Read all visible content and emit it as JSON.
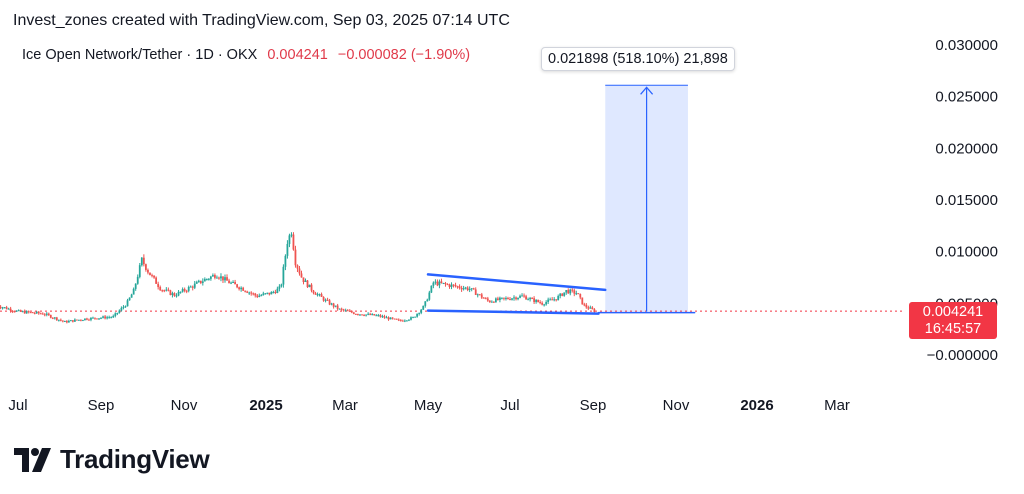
{
  "header": {
    "attribution": "Invest_zones created with TradingView.com, Sep 03, 2025 07:14 UTC"
  },
  "legend": {
    "symbol": "Ice Open Network/Tether · 1D · OKX",
    "price": "0.004241",
    "change": "−0.000082 (−1.90%)",
    "change_color": "#e03a4a"
  },
  "measure": {
    "label": "0.021898 (518.10%) 21,898"
  },
  "price_badge": {
    "price": "0.004241",
    "countdown": "16:45:57",
    "color": "#f23645"
  },
  "logo": {
    "text": "TradingView",
    "icon": "tradingview-logo-icon"
  },
  "chart_data": {
    "type": "candlestick",
    "title": "",
    "symbol": "ICE/USDT",
    "interval": "1D",
    "exchange": "OKX",
    "ylim": [
      -0.0012,
      0.031
    ],
    "y_ticks": [
      "0.030000",
      "0.025000",
      "0.020000",
      "0.015000",
      "0.010000",
      "0.005000",
      "−0.000000"
    ],
    "y_tick_values": [
      0.03,
      0.025,
      0.02,
      0.015,
      0.01,
      0.005,
      0.0
    ],
    "x_ticks": [
      "Jul",
      "Sep",
      "Nov",
      "2025",
      "Mar",
      "May",
      "Jul",
      "Sep",
      "Nov",
      "2026",
      "Mar"
    ],
    "x_tick_dates": [
      "2024-07-01",
      "2024-09-01",
      "2024-11-01",
      "2025-01-01",
      "2025-03-01",
      "2025-05-01",
      "2025-07-01",
      "2025-09-01",
      "2025-11-01",
      "2026-01-01",
      "2026-03-01"
    ],
    "x_tick_bold": [
      "2025",
      "2026"
    ],
    "up_color": "#26a69a",
    "down_color": "#ef5350",
    "price_path": [
      [
        "2024-06-15",
        0.0048
      ],
      [
        "2024-07-01",
        0.0042
      ],
      [
        "2024-07-20",
        0.004
      ],
      [
        "2024-08-05",
        0.0032
      ],
      [
        "2024-08-20",
        0.0035
      ],
      [
        "2024-09-10",
        0.0037
      ],
      [
        "2024-09-20",
        0.005
      ],
      [
        "2024-09-25",
        0.0062
      ],
      [
        "2024-10-01",
        0.0092
      ],
      [
        "2024-10-06",
        0.008
      ],
      [
        "2024-10-15",
        0.0064
      ],
      [
        "2024-10-25",
        0.0058
      ],
      [
        "2024-11-05",
        0.0065
      ],
      [
        "2024-11-15",
        0.0072
      ],
      [
        "2024-11-25",
        0.0078
      ],
      [
        "2024-12-05",
        0.007
      ],
      [
        "2024-12-15",
        0.0064
      ],
      [
        "2024-12-25",
        0.0057
      ],
      [
        "2025-01-05",
        0.006
      ],
      [
        "2025-01-12",
        0.0065
      ],
      [
        "2025-01-17",
        0.011
      ],
      [
        "2025-01-20",
        0.012
      ],
      [
        "2025-01-23",
        0.009
      ],
      [
        "2025-01-28",
        0.0074
      ],
      [
        "2025-02-05",
        0.0062
      ],
      [
        "2025-02-15",
        0.0052
      ],
      [
        "2025-02-25",
        0.0044
      ],
      [
        "2025-03-10",
        0.004
      ],
      [
        "2025-03-25",
        0.0038
      ],
      [
        "2025-04-10",
        0.0033
      ],
      [
        "2025-04-20",
        0.0036
      ],
      [
        "2025-04-28",
        0.0047
      ],
      [
        "2025-05-05",
        0.007
      ],
      [
        "2025-05-15",
        0.0068
      ],
      [
        "2025-06-01",
        0.0064
      ],
      [
        "2025-06-15",
        0.0052
      ],
      [
        "2025-07-01",
        0.0055
      ],
      [
        "2025-07-10",
        0.0057
      ],
      [
        "2025-07-25",
        0.005
      ],
      [
        "2025-08-05",
        0.0055
      ],
      [
        "2025-08-12",
        0.0062
      ],
      [
        "2025-08-20",
        0.006
      ],
      [
        "2025-08-25",
        0.0048
      ],
      [
        "2025-09-03",
        0.0042
      ]
    ],
    "last_price": 0.004241,
    "drawings": {
      "wedge_upper": [
        [
          "2025-05-01",
          0.0078
        ],
        [
          "2025-09-10",
          0.0063
        ]
      ],
      "wedge_lower": [
        [
          "2025-05-01",
          0.0043
        ],
        [
          "2025-09-05",
          0.004
        ]
      ],
      "target_line": [
        [
          "2025-09-05",
          0.0041
        ],
        [
          "2025-11-15",
          0.0041
        ]
      ],
      "measure_range": {
        "from_date": "2025-09-10",
        "to_date": "2025-11-10",
        "low": 0.0042,
        "high": 0.0261,
        "color": "#2962ff"
      }
    }
  }
}
